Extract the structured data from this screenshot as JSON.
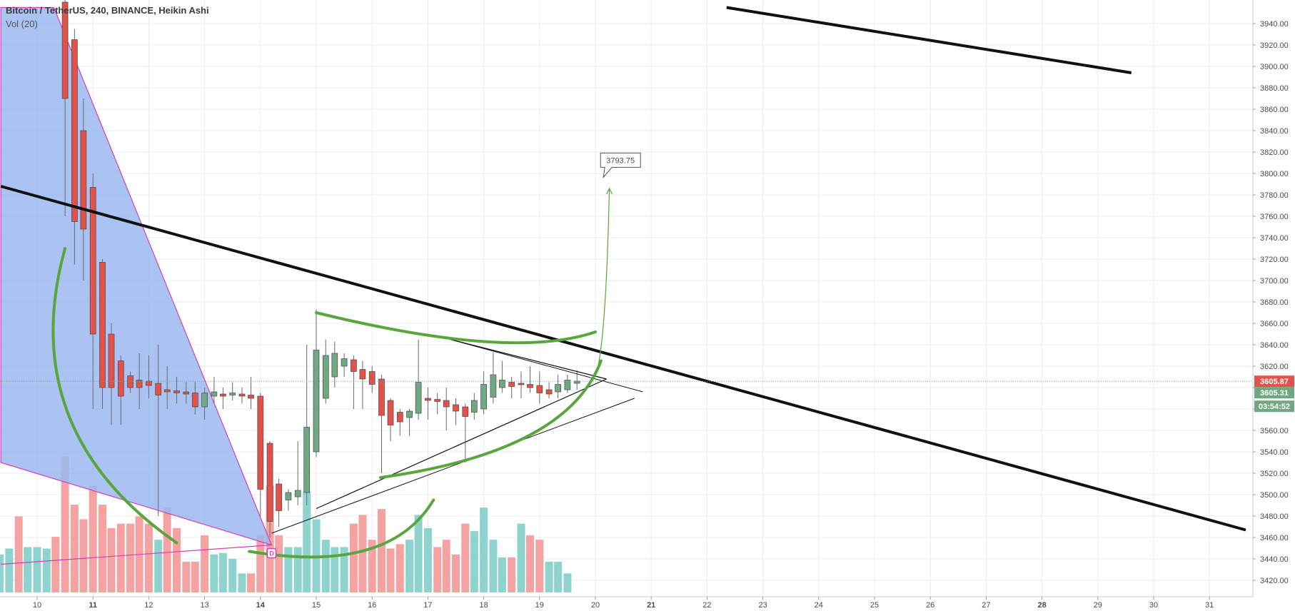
{
  "legend": {
    "title": "Bitcoin / TetherUS, 240, BINANCE, Heikin Ashi",
    "volume": "Vol (20)"
  },
  "price_badges": {
    "last": "3605.87",
    "close": "3605.31",
    "countdown": "03:54:52"
  },
  "target_label": "3793.75",
  "event_marker": "D",
  "colors": {
    "up": "#6fa882",
    "down": "#e0524a",
    "up_volume": "#8fd3cf",
    "down_volume": "#f4a2a2",
    "fill_area": "#9bb8f0",
    "trend_green": "#5aa63e",
    "last_price": "#e0524a",
    "close_price": "#6fa882"
  },
  "chart_data": {
    "type": "candlestick",
    "symbol": "Bitcoin / TetherUS",
    "interval": "240",
    "exchange": "BINANCE",
    "style": "Heikin Ashi",
    "x_ticks": [
      "10",
      "11",
      "12",
      "13",
      "14",
      "15",
      "16",
      "17",
      "18",
      "19",
      "20",
      "21",
      "22",
      "23",
      "24",
      "25",
      "26",
      "27",
      "28",
      "29",
      "30",
      "31"
    ],
    "bold_ticks": [
      "11",
      "14",
      "21",
      "28"
    ],
    "y_ticks": [
      "3420.00",
      "3440.00",
      "3460.00",
      "3480.00",
      "3500.00",
      "3520.00",
      "3540.00",
      "3560.00",
      "3580.00",
      "3600.00",
      "3620.00",
      "3640.00",
      "3660.00",
      "3680.00",
      "3700.00",
      "3720.00",
      "3740.00",
      "3760.00",
      "3780.00",
      "3800.00",
      "3820.00",
      "3840.00",
      "3860.00",
      "3880.00",
      "3900.00",
      "3920.00",
      "3940.00"
    ],
    "ylim": [
      3408,
      3955
    ],
    "x_unit": "day",
    "grid": true,
    "last_price": 3605.87,
    "close_price": 3605.31,
    "target": 3793.75,
    "candles": [
      {
        "t": 10.5,
        "o": 3960,
        "h": 3975,
        "l": 3760,
        "c": 3870
      },
      {
        "t": 10.67,
        "o": 3925,
        "h": 3935,
        "l": 3715,
        "c": 3755
      },
      {
        "t": 10.83,
        "o": 3840,
        "h": 3870,
        "l": 3700,
        "c": 3748
      },
      {
        "t": 11.0,
        "o": 3787,
        "h": 3800,
        "l": 3580,
        "c": 3650
      },
      {
        "t": 11.17,
        "o": 3717,
        "h": 3720,
        "l": 3580,
        "c": 3600
      },
      {
        "t": 11.33,
        "o": 3650,
        "h": 3660,
        "l": 3565,
        "c": 3600
      },
      {
        "t": 11.5,
        "o": 3625,
        "h": 3630,
        "l": 3565,
        "c": 3592
      },
      {
        "t": 11.67,
        "o": 3611,
        "h": 3615,
        "l": 3595,
        "c": 3600
      },
      {
        "t": 11.83,
        "o": 3607,
        "h": 3632,
        "l": 3580,
        "c": 3600
      },
      {
        "t": 12.0,
        "o": 3606,
        "h": 3630,
        "l": 3590,
        "c": 3602
      },
      {
        "t": 12.17,
        "o": 3604,
        "h": 3640,
        "l": 3480,
        "c": 3593
      },
      {
        "t": 12.33,
        "o": 3598,
        "h": 3620,
        "l": 3580,
        "c": 3596
      },
      {
        "t": 12.5,
        "o": 3597,
        "h": 3610,
        "l": 3585,
        "c": 3595
      },
      {
        "t": 12.67,
        "o": 3596,
        "h": 3605,
        "l": 3585,
        "c": 3594
      },
      {
        "t": 12.83,
        "o": 3595,
        "h": 3605,
        "l": 3575,
        "c": 3582
      },
      {
        "t": 13.0,
        "o": 3582,
        "h": 3600,
        "l": 3570,
        "c": 3595
      },
      {
        "t": 13.17,
        "o": 3592,
        "h": 3610,
        "l": 3585,
        "c": 3596
      },
      {
        "t": 13.33,
        "o": 3594,
        "h": 3600,
        "l": 3580,
        "c": 3592
      },
      {
        "t": 13.5,
        "o": 3593,
        "h": 3605,
        "l": 3588,
        "c": 3595
      },
      {
        "t": 13.67,
        "o": 3594,
        "h": 3600,
        "l": 3585,
        "c": 3592
      },
      {
        "t": 13.83,
        "o": 3593,
        "h": 3610,
        "l": 3580,
        "c": 3590
      },
      {
        "t": 14.0,
        "o": 3592,
        "h": 3595,
        "l": 3480,
        "c": 3505
      },
      {
        "t": 14.17,
        "o": 3548,
        "h": 3550,
        "l": 3460,
        "c": 3475
      },
      {
        "t": 14.33,
        "o": 3510,
        "h": 3515,
        "l": 3470,
        "c": 3485
      },
      {
        "t": 14.5,
        "o": 3495,
        "h": 3505,
        "l": 3485,
        "c": 3502
      },
      {
        "t": 14.67,
        "o": 3498,
        "h": 3550,
        "l": 3490,
        "c": 3504
      },
      {
        "t": 14.83,
        "o": 3502,
        "h": 3640,
        "l": 3490,
        "c": 3563
      },
      {
        "t": 15.0,
        "o": 3540,
        "h": 3673,
        "l": 3535,
        "c": 3635
      },
      {
        "t": 15.17,
        "o": 3590,
        "h": 3645,
        "l": 3585,
        "c": 3630
      },
      {
        "t": 15.33,
        "o": 3610,
        "h": 3643,
        "l": 3600,
        "c": 3632
      },
      {
        "t": 15.5,
        "o": 3620,
        "h": 3632,
        "l": 3610,
        "c": 3627
      },
      {
        "t": 15.67,
        "o": 3626,
        "h": 3630,
        "l": 3580,
        "c": 3615
      },
      {
        "t": 15.83,
        "o": 3617,
        "h": 3625,
        "l": 3580,
        "c": 3608
      },
      {
        "t": 16.0,
        "o": 3615,
        "h": 3620,
        "l": 3595,
        "c": 3603
      },
      {
        "t": 16.17,
        "o": 3608,
        "h": 3612,
        "l": 3520,
        "c": 3574
      },
      {
        "t": 16.33,
        "o": 3588,
        "h": 3590,
        "l": 3550,
        "c": 3565
      },
      {
        "t": 16.5,
        "o": 3577,
        "h": 3580,
        "l": 3555,
        "c": 3568
      },
      {
        "t": 16.67,
        "o": 3572,
        "h": 3580,
        "l": 3555,
        "c": 3578
      },
      {
        "t": 16.83,
        "o": 3576,
        "h": 3645,
        "l": 3570,
        "c": 3605
      },
      {
        "t": 17.0,
        "o": 3590,
        "h": 3600,
        "l": 3570,
        "c": 3588
      },
      {
        "t": 17.17,
        "o": 3589,
        "h": 3595,
        "l": 3575,
        "c": 3587
      },
      {
        "t": 17.33,
        "o": 3588,
        "h": 3600,
        "l": 3560,
        "c": 3582
      },
      {
        "t": 17.5,
        "o": 3584,
        "h": 3590,
        "l": 3565,
        "c": 3578
      },
      {
        "t": 17.67,
        "o": 3582,
        "h": 3585,
        "l": 3530,
        "c": 3573
      },
      {
        "t": 17.83,
        "o": 3577,
        "h": 3595,
        "l": 3570,
        "c": 3588
      },
      {
        "t": 18.0,
        "o": 3580,
        "h": 3615,
        "l": 3575,
        "c": 3603
      },
      {
        "t": 18.17,
        "o": 3591,
        "h": 3633,
        "l": 3585,
        "c": 3612
      },
      {
        "t": 18.33,
        "o": 3600,
        "h": 3625,
        "l": 3595,
        "c": 3607
      },
      {
        "t": 18.5,
        "o": 3605,
        "h": 3610,
        "l": 3590,
        "c": 3601
      },
      {
        "t": 18.67,
        "o": 3604,
        "h": 3615,
        "l": 3590,
        "c": 3603
      },
      {
        "t": 18.83,
        "o": 3603,
        "h": 3620,
        "l": 3595,
        "c": 3600
      },
      {
        "t": 19.0,
        "o": 3602,
        "h": 3615,
        "l": 3585,
        "c": 3595
      },
      {
        "t": 19.17,
        "o": 3598,
        "h": 3605,
        "l": 3590,
        "c": 3594
      },
      {
        "t": 19.33,
        "o": 3596,
        "h": 3612,
        "l": 3590,
        "c": 3603
      },
      {
        "t": 19.5,
        "o": 3598,
        "h": 3612,
        "l": 3595,
        "c": 3607
      },
      {
        "t": 19.67,
        "o": 3604,
        "h": 3616,
        "l": 3598,
        "c": 3606
      }
    ],
    "volume": {
      "bars": [
        {
          "t": 9.33,
          "v": 0.26,
          "up": true
        },
        {
          "t": 9.5,
          "v": 0.3,
          "up": true
        },
        {
          "t": 9.67,
          "v": 0.52,
          "up": false
        },
        {
          "t": 9.83,
          "v": 0.31,
          "up": true
        },
        {
          "t": 10.0,
          "v": 0.31,
          "up": true
        },
        {
          "t": 10.17,
          "v": 0.3,
          "up": true
        },
        {
          "t": 10.33,
          "v": 0.38,
          "up": false
        },
        {
          "t": 10.5,
          "v": 0.93,
          "up": false
        },
        {
          "t": 10.67,
          "v": 0.6,
          "up": false
        },
        {
          "t": 10.83,
          "v": 0.5,
          "up": false
        },
        {
          "t": 11.0,
          "v": 0.73,
          "up": false
        },
        {
          "t": 11.17,
          "v": 0.6,
          "up": false
        },
        {
          "t": 11.33,
          "v": 0.44,
          "up": false
        },
        {
          "t": 11.5,
          "v": 0.47,
          "up": false
        },
        {
          "t": 11.67,
          "v": 0.47,
          "up": false
        },
        {
          "t": 11.83,
          "v": 0.52,
          "up": false
        },
        {
          "t": 12.0,
          "v": 0.47,
          "up": false
        },
        {
          "t": 12.17,
          "v": 0.36,
          "up": true
        },
        {
          "t": 12.33,
          "v": 0.58,
          "up": false
        },
        {
          "t": 12.5,
          "v": 0.44,
          "up": false
        },
        {
          "t": 12.67,
          "v": 0.21,
          "up": false
        },
        {
          "t": 12.83,
          "v": 0.21,
          "up": false
        },
        {
          "t": 13.0,
          "v": 0.39,
          "up": false
        },
        {
          "t": 13.17,
          "v": 0.26,
          "up": true
        },
        {
          "t": 13.33,
          "v": 0.27,
          "up": true
        },
        {
          "t": 13.5,
          "v": 0.23,
          "up": true
        },
        {
          "t": 13.67,
          "v": 0.13,
          "up": true
        },
        {
          "t": 13.83,
          "v": 0.13,
          "up": false
        },
        {
          "t": 14.0,
          "v": 0.39,
          "up": false
        },
        {
          "t": 14.17,
          "v": 0.73,
          "up": false
        },
        {
          "t": 14.33,
          "v": 0.39,
          "up": false
        },
        {
          "t": 14.5,
          "v": 0.31,
          "up": true
        },
        {
          "t": 14.67,
          "v": 0.31,
          "up": true
        },
        {
          "t": 14.83,
          "v": 0.69,
          "up": true
        },
        {
          "t": 15.0,
          "v": 0.5,
          "up": true
        },
        {
          "t": 15.17,
          "v": 0.36,
          "up": true
        },
        {
          "t": 15.33,
          "v": 0.31,
          "up": true
        },
        {
          "t": 15.5,
          "v": 0.31,
          "up": true
        },
        {
          "t": 15.67,
          "v": 0.47,
          "up": false
        },
        {
          "t": 15.83,
          "v": 0.53,
          "up": false
        },
        {
          "t": 16.0,
          "v": 0.36,
          "up": false
        },
        {
          "t": 16.17,
          "v": 0.57,
          "up": false
        },
        {
          "t": 16.33,
          "v": 0.3,
          "up": false
        },
        {
          "t": 16.5,
          "v": 0.33,
          "up": false
        },
        {
          "t": 16.67,
          "v": 0.36,
          "up": true
        },
        {
          "t": 16.83,
          "v": 0.53,
          "up": true
        },
        {
          "t": 17.0,
          "v": 0.44,
          "up": true
        },
        {
          "t": 17.17,
          "v": 0.31,
          "up": false
        },
        {
          "t": 17.33,
          "v": 0.36,
          "up": false
        },
        {
          "t": 17.5,
          "v": 0.26,
          "up": false
        },
        {
          "t": 17.67,
          "v": 0.47,
          "up": false
        },
        {
          "t": 17.83,
          "v": 0.42,
          "up": true
        },
        {
          "t": 18.0,
          "v": 0.58,
          "up": true
        },
        {
          "t": 18.17,
          "v": 0.36,
          "up": true
        },
        {
          "t": 18.33,
          "v": 0.24,
          "up": true
        },
        {
          "t": 18.5,
          "v": 0.24,
          "up": false
        },
        {
          "t": 18.67,
          "v": 0.47,
          "up": true
        },
        {
          "t": 18.83,
          "v": 0.39,
          "up": false
        },
        {
          "t": 19.0,
          "v": 0.36,
          "up": false
        },
        {
          "t": 19.17,
          "v": 0.21,
          "up": true
        },
        {
          "t": 19.33,
          "v": 0.21,
          "up": true
        },
        {
          "t": 19.5,
          "v": 0.13,
          "up": true
        }
      ]
    },
    "drawings": {
      "resistance_line_main": {
        "p1": [
          9.35,
          3788
        ],
        "p2": [
          31.65,
          3467
        ]
      },
      "resistance_line_upper": {
        "p1": [
          22.35,
          3955
        ],
        "p2": [
          29.6,
          3894
        ]
      },
      "triangle_upper": {
        "p1": [
          17.4,
          3645
        ],
        "p2": [
          20.2,
          3608
        ]
      },
      "triangle_lower": {
        "p1": [
          15.0,
          3487
        ],
        "p2": [
          20.2,
          3608
        ]
      },
      "channel_upper_ext": {
        "p1": [
          17.4,
          3645
        ],
        "p2": [
          20.85,
          3596
        ]
      },
      "channel_lower_ext": {
        "p1": [
          14.2,
          3464
        ],
        "p2": [
          20.7,
          3590
        ]
      },
      "wedge_polygon": [
        [
          9.35,
          3955
        ],
        [
          10.3,
          3955
        ],
        [
          14.2,
          3453
        ],
        [
          9.35,
          3530
        ]
      ],
      "bottom_pink_line": {
        "p1": [
          9.35,
          3435
        ],
        "p2": [
          14.2,
          3453
        ]
      },
      "projection_arrow": {
        "from": [
          20.05,
          3620
        ],
        "to": [
          20.25,
          3786
        ]
      }
    }
  }
}
